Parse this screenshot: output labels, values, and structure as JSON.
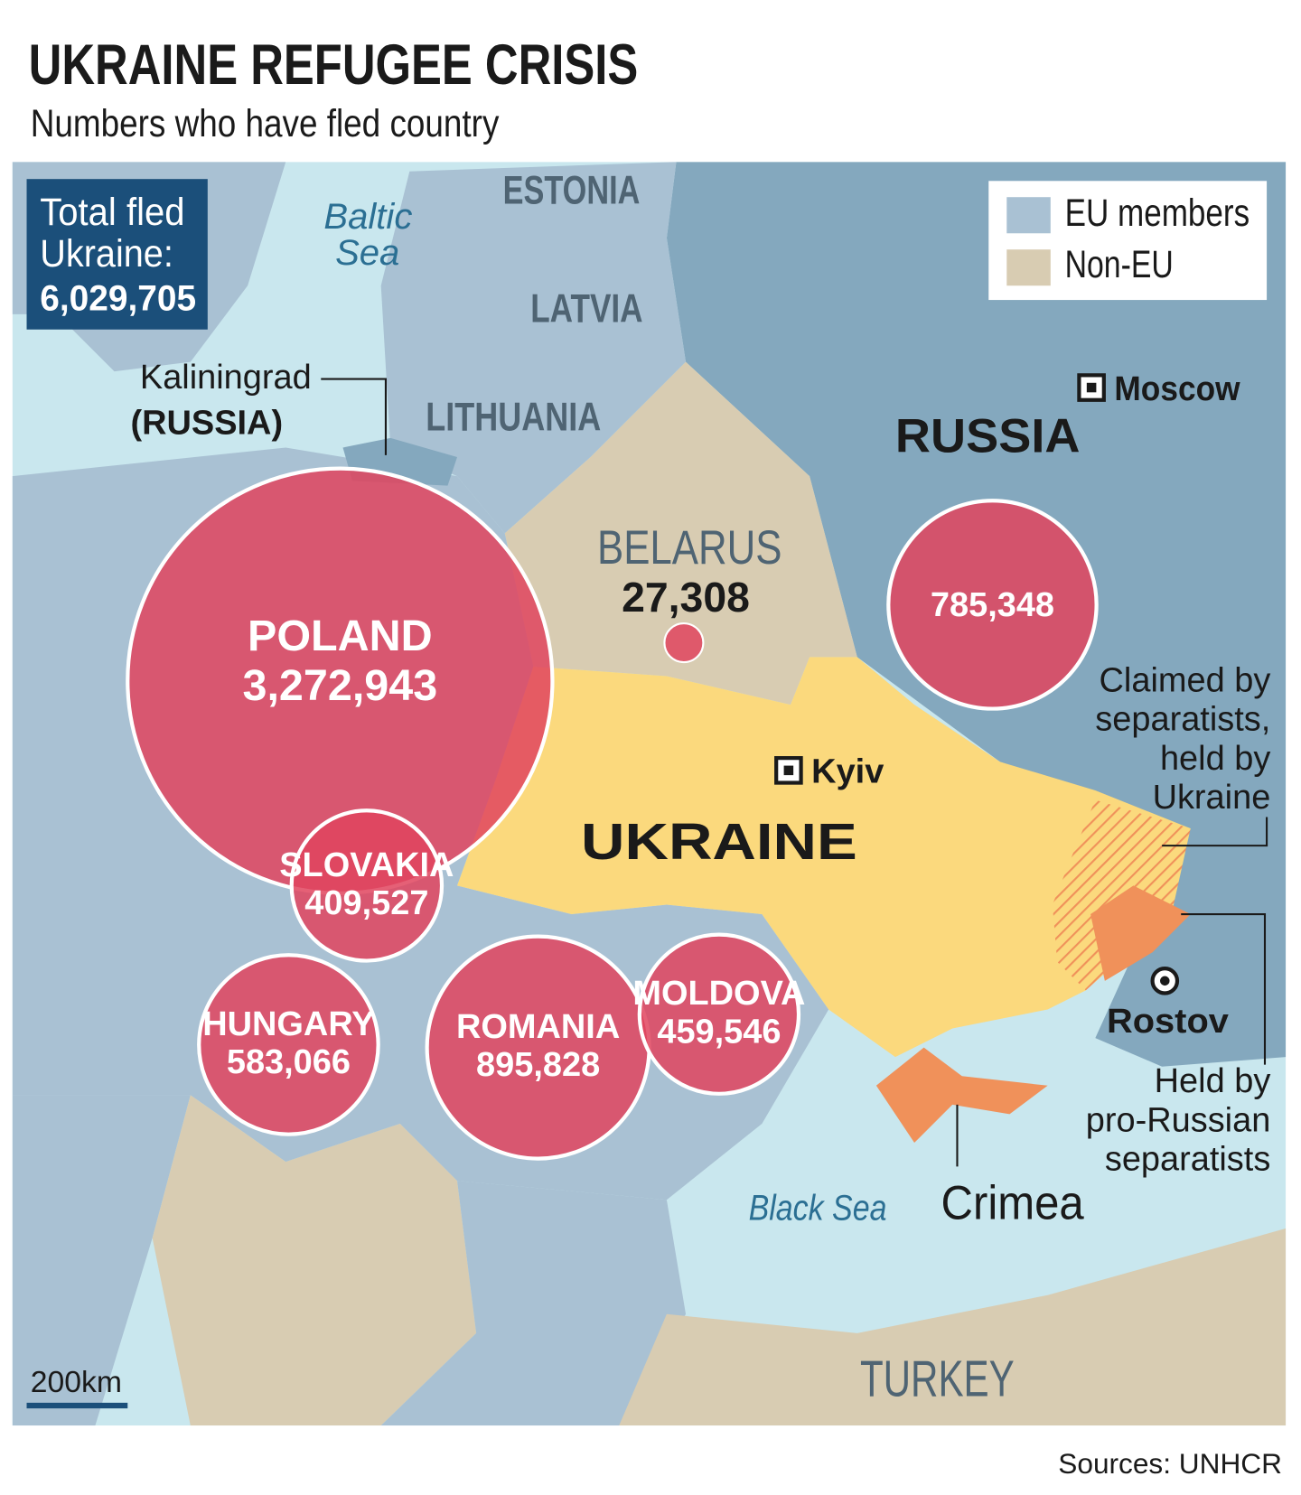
{
  "header": {
    "title": "UKRAINE REFUGEE CRISIS",
    "subtitle": "Numbers who have fled country"
  },
  "total": {
    "lines": [
      "Total fled",
      "Ukraine:"
    ],
    "value": "6,029,705"
  },
  "legend": [
    {
      "label": "EU members",
      "color": "#a9c1d3"
    },
    {
      "label": "Non-EU",
      "color": "#d8ccb2"
    }
  ],
  "bubble_color": "#e0445e",
  "bubbles": [
    {
      "name": "POLAND",
      "value": 3272943,
      "value_label": "3,272,943"
    },
    {
      "name": "SLOVAKIA",
      "value": 409527,
      "value_label": "409,527"
    },
    {
      "name": "HUNGARY",
      "value": 583066,
      "value_label": "583,066"
    },
    {
      "name": "ROMANIA",
      "value": 895828,
      "value_label": "895,828"
    },
    {
      "name": "MOLDOVA",
      "value": 459546,
      "value_label": "459,546"
    },
    {
      "value": 785348,
      "value_label": "785,348"
    },
    {
      "value": 27308,
      "value_label": "27,308"
    }
  ],
  "places": {
    "estonia": "ESTONIA",
    "latvia": "LATVIA",
    "lithuania": "LITHUANIA",
    "belarus": "BELARUS",
    "russia": "RUSSIA",
    "ukraine": "UKRAINE",
    "turkey": "TURKEY"
  },
  "seas": {
    "baltic": [
      "Baltic",
      "Sea"
    ],
    "black": "Black Sea"
  },
  "cities": {
    "moscow": "Moscow",
    "kyiv": "Kyiv",
    "rostov": "Rostov"
  },
  "annotations": {
    "kaliningrad": [
      "Kaliningrad",
      "(RUSSIA)"
    ],
    "claimed": [
      "Claimed by",
      "separatists,",
      "held by",
      "Ukraine"
    ],
    "held": [
      "Held by",
      "pro-Russian",
      "separatists"
    ],
    "crimea": "Crimea"
  },
  "scale_bar": "200km",
  "source": "Sources: UNHCR"
}
